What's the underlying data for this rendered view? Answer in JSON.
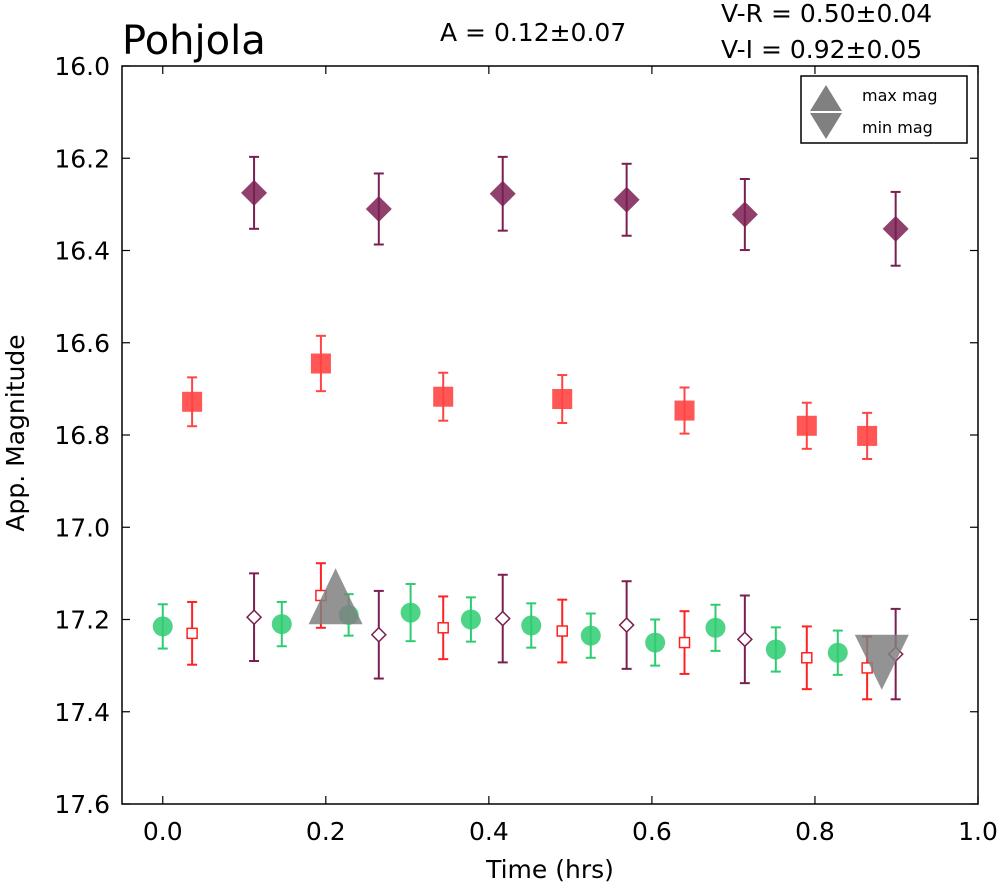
{
  "chart_data": {
    "type": "scatter",
    "title": "Pohjola",
    "annotations": {
      "amplitude": "A  = 0.12±0.07",
      "v_r": "V-R = 0.50±0.04",
      "v_i": "V-I  = 0.92±0.05"
    },
    "xlabel": "Time (hrs)",
    "ylabel": "App. Magnitude",
    "xlim": [
      -0.05,
      1.0
    ],
    "ylim": [
      16.0,
      17.6
    ],
    "y_inverted": true,
    "xticks": [
      "0.0",
      "0.2",
      "0.4",
      "0.6",
      "0.8",
      "1.0"
    ],
    "yticks": [
      "16.0",
      "16.2",
      "16.4",
      "16.6",
      "16.8",
      "17.0",
      "17.2",
      "17.4",
      "17.6"
    ],
    "legend": {
      "placement": "top-right",
      "entries": [
        "max mag",
        "min mag"
      ]
    },
    "series": [
      {
        "marker": "diamond-filled",
        "color": "#7b1f52",
        "x": [
          0.112,
          0.265,
          0.417,
          0.569,
          0.714,
          0.899
        ],
        "y": [
          16.275,
          16.31,
          16.277,
          16.29,
          16.322,
          16.353
        ],
        "err": [
          0.078,
          0.077,
          0.08,
          0.078,
          0.077,
          0.08
        ]
      },
      {
        "marker": "square-filled",
        "color": "#ff4444",
        "x": [
          0.036,
          0.194,
          0.344,
          0.49,
          0.64,
          0.79,
          0.864
        ],
        "y": [
          16.728,
          16.645,
          16.717,
          16.722,
          16.747,
          16.78,
          16.802
        ],
        "err": [
          0.053,
          0.06,
          0.052,
          0.052,
          0.05,
          0.05,
          0.05
        ]
      },
      {
        "marker": "circle-filled",
        "color": "#2ecc71",
        "x": [
          0.0,
          0.146,
          0.228,
          0.304,
          0.378,
          0.452,
          0.525,
          0.604,
          0.678,
          0.752,
          0.828
        ],
        "y": [
          17.215,
          17.21,
          17.19,
          17.185,
          17.2,
          17.213,
          17.235,
          17.25,
          17.218,
          17.265,
          17.272
        ],
        "err": [
          0.048,
          0.048,
          0.045,
          0.062,
          0.048,
          0.048,
          0.048,
          0.05,
          0.05,
          0.048,
          0.048
        ]
      },
      {
        "marker": "square-open",
        "color": "#ff2222",
        "x": [
          0.036,
          0.194,
          0.344,
          0.49,
          0.64,
          0.79,
          0.864
        ],
        "y": [
          17.23,
          17.148,
          17.218,
          17.225,
          17.25,
          17.283,
          17.305
        ],
        "err": [
          0.068,
          0.07,
          0.068,
          0.068,
          0.068,
          0.068,
          0.068
        ]
      },
      {
        "marker": "diamond-open",
        "color": "#7b1f52",
        "x": [
          0.112,
          0.265,
          0.417,
          0.569,
          0.714,
          0.899
        ],
        "y": [
          17.195,
          17.233,
          17.198,
          17.212,
          17.243,
          17.275
        ],
        "err": [
          0.095,
          0.095,
          0.095,
          0.095,
          0.095,
          0.098
        ]
      }
    ],
    "extrema": {
      "max_mag": {
        "x": 0.212,
        "y": 17.18,
        "color": "#808080"
      },
      "min_mag": {
        "x": 0.882,
        "y": 17.27,
        "color": "#808080"
      }
    }
  }
}
